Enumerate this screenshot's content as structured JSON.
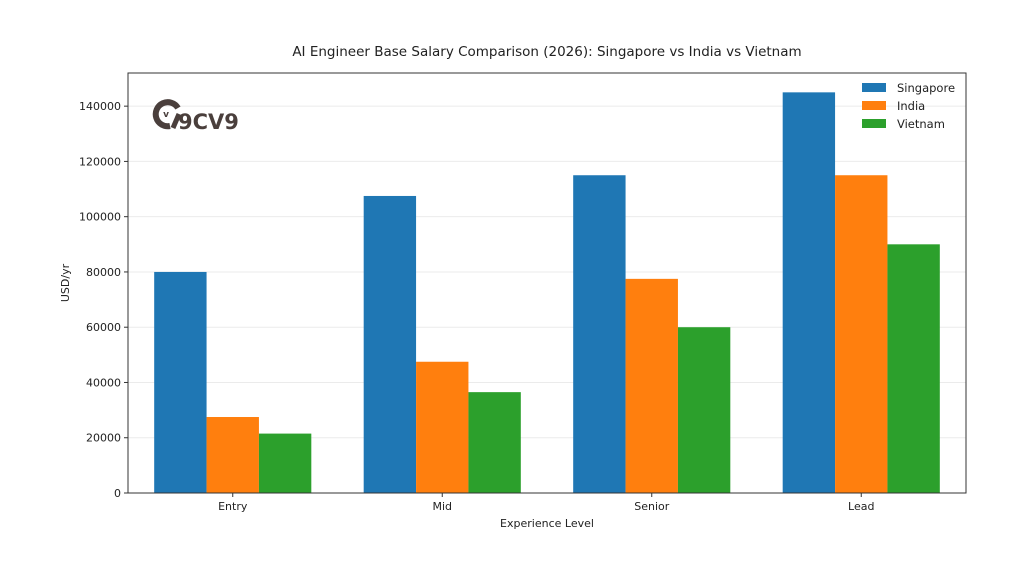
{
  "chart_data": {
    "type": "bar",
    "title": "AI Engineer Base Salary Comparison (2026): Singapore vs India vs Vietnam",
    "xlabel": "Experience Level",
    "ylabel": "USD/yr",
    "categories": [
      "Entry",
      "Mid",
      "Senior",
      "Lead"
    ],
    "series": [
      {
        "name": "Singapore",
        "color": "#1f77b4",
        "values": [
          80000,
          107500,
          115000,
          145000
        ]
      },
      {
        "name": "India",
        "color": "#ff7f0e",
        "values": [
          27500,
          47500,
          77500,
          115000
        ]
      },
      {
        "name": "Vietnam",
        "color": "#2ca02c",
        "values": [
          21500,
          36500,
          60000,
          90000
        ]
      }
    ],
    "ylim": [
      0,
      152000
    ],
    "yticks": [
      0,
      20000,
      40000,
      60000,
      80000,
      100000,
      120000,
      140000
    ],
    "ytick_labels": [
      "0",
      "20000",
      "40000",
      "60000",
      "80000",
      "100000",
      "120000",
      "140000"
    ],
    "grid": true,
    "legend_position": "top-right"
  },
  "watermark": {
    "text": "9CV9",
    "icon": "9cv9-logo-icon",
    "color": "#4a3f3c"
  }
}
